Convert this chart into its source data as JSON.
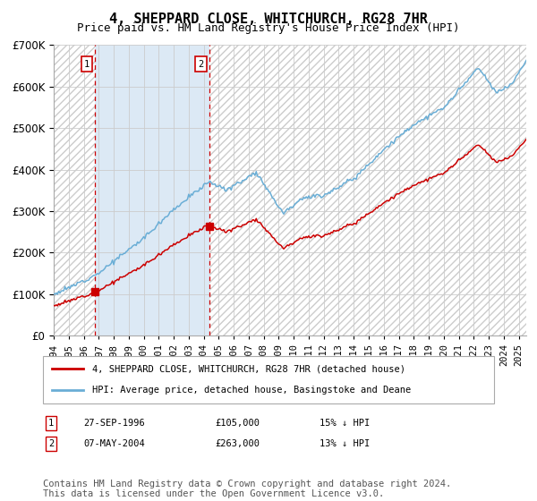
{
  "title": "4, SHEPPARD CLOSE, WHITCHURCH, RG28 7HR",
  "subtitle": "Price paid vs. HM Land Registry's House Price Index (HPI)",
  "legend_line1": "4, SHEPPARD CLOSE, WHITCHURCH, RG28 7HR (detached house)",
  "legend_line2": "HPI: Average price, detached house, Basingstoke and Deane",
  "footer": "Contains HM Land Registry data © Crown copyright and database right 2024.\nThis data is licensed under the Open Government Licence v3.0.",
  "sale1_date": 1996.75,
  "sale1_price": 105000,
  "sale1_label": "27-SEP-1996",
  "sale1_amount": "£105,000",
  "sale1_pct": "15% ↓ HPI",
  "sale2_date": 2004.36,
  "sale2_price": 263000,
  "sale2_label": "07-MAY-2004",
  "sale2_amount": "£263,000",
  "sale2_pct": "13% ↓ HPI",
  "ylim": [
    0,
    700000
  ],
  "xlim_start": 1994.0,
  "xlim_end": 2025.5,
  "hpi_color": "#6aaed6",
  "sale_color": "#cc0000",
  "background_shaded_color": "#dce9f5",
  "hatch_color": "#cccccc",
  "title_fontsize": 11,
  "subtitle_fontsize": 9,
  "footer_fontsize": 7.5
}
